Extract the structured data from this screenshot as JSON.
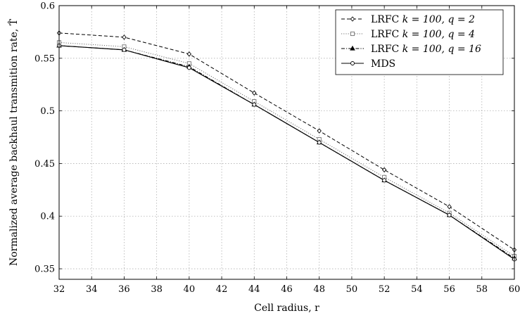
{
  "chart_data": {
    "type": "line",
    "title": "",
    "xlabel": "Cell radius, r",
    "ylabel": "Normalized average backhaul transmition rate, T̂",
    "xlim": [
      32,
      60
    ],
    "ylim": [
      0.34,
      0.6
    ],
    "x_ticks": [
      32,
      34,
      36,
      38,
      40,
      42,
      44,
      46,
      48,
      50,
      52,
      54,
      56,
      58,
      60
    ],
    "y_ticks": [
      0.35,
      0.4,
      0.45,
      0.5,
      0.55,
      0.6
    ],
    "y_tick_labels": [
      "0.35",
      "0.4",
      "0.45",
      "0.5",
      "0.55",
      "0.6"
    ],
    "grid": true,
    "legend_position": "top-right",
    "x": [
      32,
      36,
      40,
      44,
      48,
      52,
      56,
      60
    ],
    "series": [
      {
        "name": "LRFC k = 100, q = 2",
        "legend_prefix": "LRFC ",
        "legend_math": "k = 100, q = 2",
        "marker": "diamond",
        "line_style": "dashed",
        "color": "#000000",
        "values": [
          0.574,
          0.57,
          0.554,
          0.517,
          0.481,
          0.444,
          0.409,
          0.368
        ]
      },
      {
        "name": "LRFC k = 100, q = 4",
        "legend_prefix": "LRFC ",
        "legend_math": "k = 100, q = 4",
        "marker": "square",
        "line_style": "dotted",
        "color": "#707070",
        "values": [
          0.565,
          0.561,
          0.545,
          0.509,
          0.473,
          0.437,
          0.403,
          0.362
        ]
      },
      {
        "name": "LRFC k = 100, q = 16",
        "legend_prefix": "LRFC ",
        "legend_math": "k = 100, q = 16",
        "marker": "triangle",
        "line_style": "dashdot",
        "color": "#000000",
        "values": [
          0.562,
          0.558,
          0.542,
          0.506,
          0.47,
          0.434,
          0.401,
          0.36
        ]
      },
      {
        "name": "MDS",
        "legend_prefix": "MDS",
        "legend_math": "",
        "marker": "circle",
        "line_style": "solid",
        "color": "#000000",
        "values": [
          0.562,
          0.558,
          0.541,
          0.506,
          0.47,
          0.434,
          0.401,
          0.359
        ]
      }
    ]
  }
}
